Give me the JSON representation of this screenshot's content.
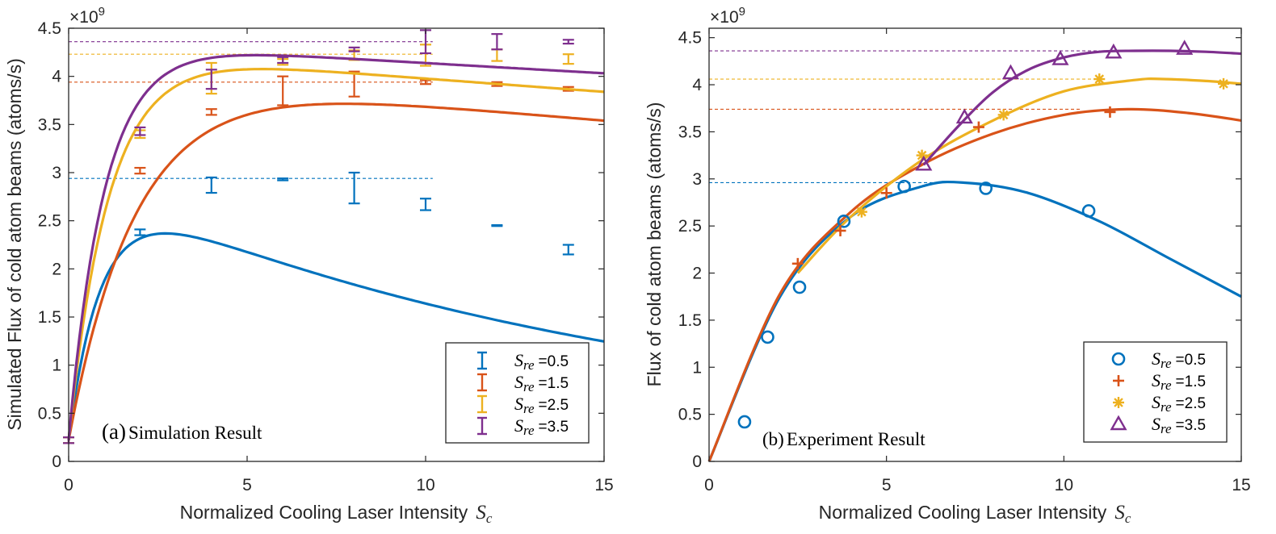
{
  "colors": {
    "s05": "#0072BD",
    "s15": "#D95319",
    "s25": "#EDB120",
    "s35": "#7E2F8E",
    "axis": "#262626",
    "grid": "none"
  },
  "legend_entries": [
    {
      "sym": "S",
      "sub": "re",
      "value": "=0.5"
    },
    {
      "sym": "S",
      "sub": "re",
      "value": "=1.5"
    },
    {
      "sym": "S",
      "sub": "re",
      "value": "=2.5"
    },
    {
      "sym": "S",
      "sub": "re",
      "value": "=3.5"
    }
  ],
  "chart_data": [
    {
      "type": "line",
      "panel": "a",
      "caption_letter": "(a)",
      "caption_text": "Simulation Result",
      "xlabel": "Normalized Cooling Laser Intensity",
      "xlabel_symbol": "S",
      "xlabel_sub": "c",
      "ylabel": "Simulated Flux of cold atom beams (atoms/s)",
      "exponent_base": "×10",
      "exponent_power": "9",
      "xlim": [
        0,
        15
      ],
      "ylim": [
        0,
        4.5
      ],
      "xticks": [
        "0",
        "5",
        "10",
        "15"
      ],
      "yticks": [
        "0",
        "0.5",
        "1",
        "1.5",
        "2",
        "2.5",
        "3",
        "3.5",
        "4",
        "4.5"
      ],
      "legend_location": "bottom-right",
      "markers": "errorbar",
      "series": [
        {
          "name": "Sre=0.5",
          "color_key": "s05",
          "A": 2.72,
          "k": 1.05,
          "m": 0.065,
          "x": [
            0,
            2,
            4,
            6,
            8,
            10,
            12,
            14
          ],
          "y": [
            0.22,
            2.38,
            2.87,
            2.93,
            2.84,
            2.67,
            2.45,
            2.2
          ],
          "err": [
            0.03,
            0.03,
            0.08,
            0.01,
            0.16,
            0.06,
            0.005,
            0.05
          ],
          "plateau": 2.94
        },
        {
          "name": "Sre=1.5",
          "color_key": "s15",
          "A": 3.83,
          "k": 0.52,
          "m": 0.0095,
          "x": [
            0,
            2,
            4,
            6,
            8,
            10,
            12,
            14
          ],
          "y": [
            0.22,
            3.02,
            3.63,
            3.85,
            3.92,
            3.94,
            3.92,
            3.87
          ],
          "err": [
            0.03,
            0.03,
            0.03,
            0.15,
            0.13,
            0.02,
            0.02,
            0.02
          ],
          "plateau": 3.94
        },
        {
          "name": "Sre=2.5",
          "color_key": "s25",
          "A": 4.05,
          "k": 0.88,
          "m": 0.0075,
          "x": [
            0,
            2,
            4,
            6,
            8,
            10,
            12,
            14
          ],
          "y": [
            0.22,
            3.4,
            3.98,
            4.15,
            4.22,
            4.22,
            4.22,
            4.18
          ],
          "err": [
            0.03,
            0.04,
            0.16,
            0.03,
            0.05,
            0.11,
            0.06,
            0.05
          ],
          "plateau": 4.23
        },
        {
          "name": "Sre=3.5",
          "color_key": "s35",
          "A": 4.14,
          "k": 0.99,
          "m": 0.0055,
          "x": [
            0,
            2,
            4,
            6,
            8,
            10,
            12,
            14
          ],
          "y": [
            0.22,
            3.43,
            3.97,
            4.17,
            4.28,
            4.36,
            4.36,
            4.36
          ],
          "err": [
            0.03,
            0.04,
            0.1,
            0.03,
            0.02,
            0.12,
            0.08,
            0.02
          ],
          "plateau": 4.36
        }
      ]
    },
    {
      "type": "line",
      "panel": "b",
      "caption_letter": "(b)",
      "caption_text": "Experiment Result",
      "xlabel": "Normalized Cooling Laser Intensity",
      "xlabel_symbol": "S",
      "xlabel_sub": "c",
      "ylabel": "Flux of cold atom beams (atoms/s)",
      "exponent_base": "×10",
      "exponent_power": "9",
      "xlim": [
        0,
        15
      ],
      "ylim": [
        0,
        4.6
      ],
      "xticks": [
        "0",
        "5",
        "10",
        "15"
      ],
      "yticks": [
        "0",
        "0.5",
        "1",
        "1.5",
        "2",
        "2.5",
        "3",
        "3.5",
        "4",
        "4.5"
      ],
      "legend_location": "bottom-right",
      "series": [
        {
          "name": "Sre=0.5",
          "color_key": "s05",
          "marker": "circle",
          "x": [
            1.0,
            1.65,
            2.55,
            3.8,
            5.5,
            7.8,
            10.7
          ],
          "y": [
            0.42,
            1.32,
            1.85,
            2.55,
            2.92,
            2.9,
            2.66
          ],
          "fit_x": [
            0,
            2,
            4,
            6,
            7.2,
            9,
            11,
            13,
            15
          ],
          "fit_y": [
            0,
            1.75,
            2.6,
            2.92,
            2.96,
            2.85,
            2.55,
            2.15,
            1.75
          ],
          "plateau": 2.96,
          "plateau_xmax": 7.2
        },
        {
          "name": "Sre=1.5",
          "color_key": "s15",
          "marker": "plus",
          "x": [
            2.5,
            3.7,
            5.0,
            7.6,
            11.3
          ],
          "y": [
            2.1,
            2.45,
            2.85,
            3.55,
            3.71
          ],
          "fit_x": [
            0,
            2,
            4,
            6,
            8,
            10,
            11.8,
            13.5,
            15
          ],
          "fit_y": [
            0,
            1.78,
            2.65,
            3.15,
            3.48,
            3.68,
            3.74,
            3.7,
            3.62
          ],
          "plateau": 3.74,
          "plateau_xmax": 10.5
        },
        {
          "name": "Sre=2.5",
          "color_key": "s25",
          "marker": "asterisk",
          "x": [
            4.3,
            6.0,
            8.3,
            11.0,
            14.5
          ],
          "y": [
            2.65,
            3.25,
            3.68,
            4.06,
            4.01
          ],
          "fit_x": [
            2.5,
            4,
            6,
            8,
            10,
            12,
            12.8,
            14,
            15
          ],
          "fit_y": [
            2.0,
            2.6,
            3.2,
            3.62,
            3.93,
            4.05,
            4.06,
            4.04,
            4.01
          ],
          "plateau": 4.06,
          "plateau_xmax": 11.0
        },
        {
          "name": "Sre=3.5",
          "color_key": "s35",
          "marker": "triangle",
          "x": [
            6.05,
            7.2,
            8.5,
            9.9,
            11.4,
            13.4
          ],
          "y": [
            3.15,
            3.65,
            4.12,
            4.27,
            4.34,
            4.38
          ],
          "fit_x": [
            6.05,
            7,
            8,
            9,
            10,
            11,
            12,
            13,
            14,
            15
          ],
          "fit_y": [
            3.15,
            3.55,
            3.92,
            4.16,
            4.29,
            4.35,
            4.36,
            4.36,
            4.35,
            4.33
          ],
          "plateau": 4.36,
          "plateau_xmax": 12.5
        }
      ]
    }
  ]
}
